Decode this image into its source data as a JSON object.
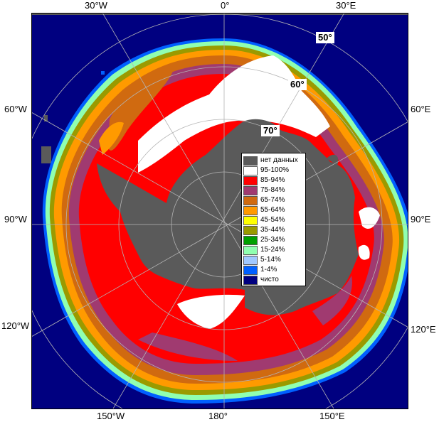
{
  "map": {
    "longitude_labels": {
      "top": [
        "30°W",
        "0°",
        "30°E"
      ],
      "left": [
        "60°W",
        "90°W",
        "120°W"
      ],
      "right": [
        "60°E",
        "90°E",
        "120°E"
      ],
      "bottom": [
        "150°W",
        "180°",
        "150°E"
      ]
    },
    "latitude_labels": [
      "50°",
      "60°",
      "70°"
    ],
    "colors": {
      "land": "#5a5a5a",
      "ocean": "#000080",
      "frame": "#5a5a5a",
      "graticule": "#b4b4b4"
    }
  },
  "legend": {
    "items": [
      {
        "label": "нет данных",
        "color": "#5a5a5a"
      },
      {
        "label": "95-100%",
        "color": "#ffffff"
      },
      {
        "label": "85-94%",
        "color": "#ff0000"
      },
      {
        "label": "75-84%",
        "color": "#a03a70"
      },
      {
        "label": "65-74%",
        "color": "#d06a10"
      },
      {
        "label": "55-64%",
        "color": "#ff9a00"
      },
      {
        "label": "45-54%",
        "color": "#ffff00"
      },
      {
        "label": "35-44%",
        "color": "#9a9a00"
      },
      {
        "label": "25-34%",
        "color": "#00a000"
      },
      {
        "label": "15-24%",
        "color": "#90ffb0"
      },
      {
        "label": "5-14%",
        "color": "#a0c8ff"
      },
      {
        "label": "1-4%",
        "color": "#0060ff"
      },
      {
        "label": "чисто",
        "color": "#000080"
      }
    ]
  }
}
